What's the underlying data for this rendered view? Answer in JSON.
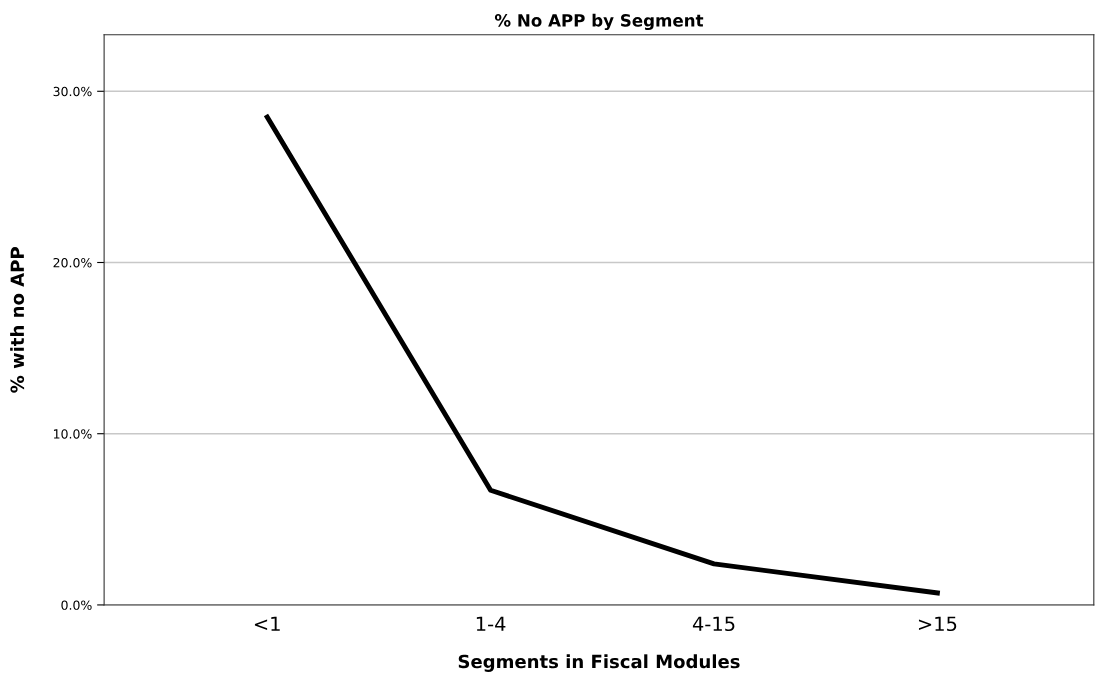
{
  "chart_data": {
    "type": "line",
    "title": "% No APP by Segment",
    "xlabel": "Segments in Fiscal Modules",
    "ylabel": "% with no APP",
    "categories": [
      "<1",
      "1-4",
      "4-15",
      ">15"
    ],
    "series": [
      {
        "color": "#000000",
        "values": [
          28.5,
          6.7,
          2.4,
          0.7
        ]
      }
    ],
    "ylim": [
      0,
      33.3
    ],
    "yticks": [
      {
        "value": 0,
        "label": "0.0%"
      },
      {
        "value": 10,
        "label": "10.0%"
      },
      {
        "value": 20,
        "label": "20.0%"
      },
      {
        "value": 30,
        "label": "30.0%"
      }
    ],
    "grid": "y",
    "marker": "none",
    "line_style": "solid"
  }
}
